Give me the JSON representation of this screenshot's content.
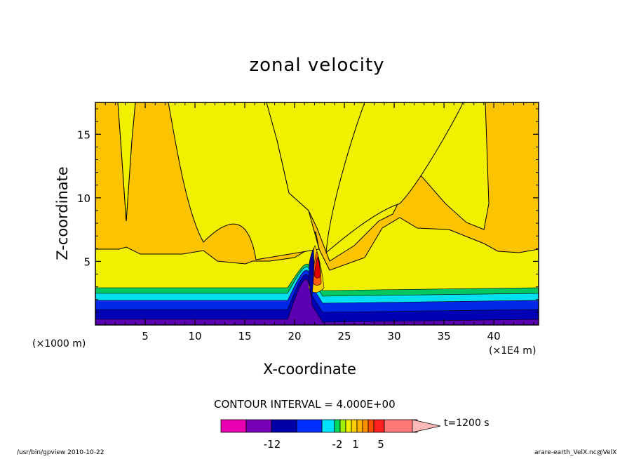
{
  "chart_data": {
    "type": "contour",
    "title": "zonal velocity",
    "xlabel": "X-coordinate",
    "ylabel": "Z-coordinate",
    "x_unit_left": "(×1000 m)",
    "x_unit_right": "(×1E4 m)",
    "xlim": [
      0,
      44.5
    ],
    "ylim": [
      0,
      17.5
    ],
    "x_ticks": [
      5,
      10,
      15,
      20,
      25,
      30,
      35,
      40
    ],
    "y_ticks": [
      5,
      10,
      15
    ],
    "contour_interval": "CONTOUR INTERVAL = 4.000E+00",
    "time": "t=1200 s",
    "colorbar": {
      "colors": [
        "#e800b0",
        "#7800b8",
        "#0000a8",
        "#0030ff",
        "#00e0ff",
        "#00d860",
        "#a0f000",
        "#f0f000",
        "#ffd000",
        "#ffb000",
        "#ff9000",
        "#ff5000",
        "#ff2020",
        "#ff7878",
        "#ffb8b8"
      ],
      "labels": [
        "-12",
        "-2",
        "1",
        "5"
      ]
    },
    "regions": {
      "background_color": "#f0f000",
      "upper_color": "#fcc400",
      "layer_colors": [
        "#5a00b0",
        "#0000b4",
        "#0028e8",
        "#00e0f0",
        "#00c860"
      ]
    }
  },
  "footer": {
    "left": "/usr/bin/gpview   2010-10-22",
    "right": "arare-earth_VelX.nc@VelX"
  }
}
